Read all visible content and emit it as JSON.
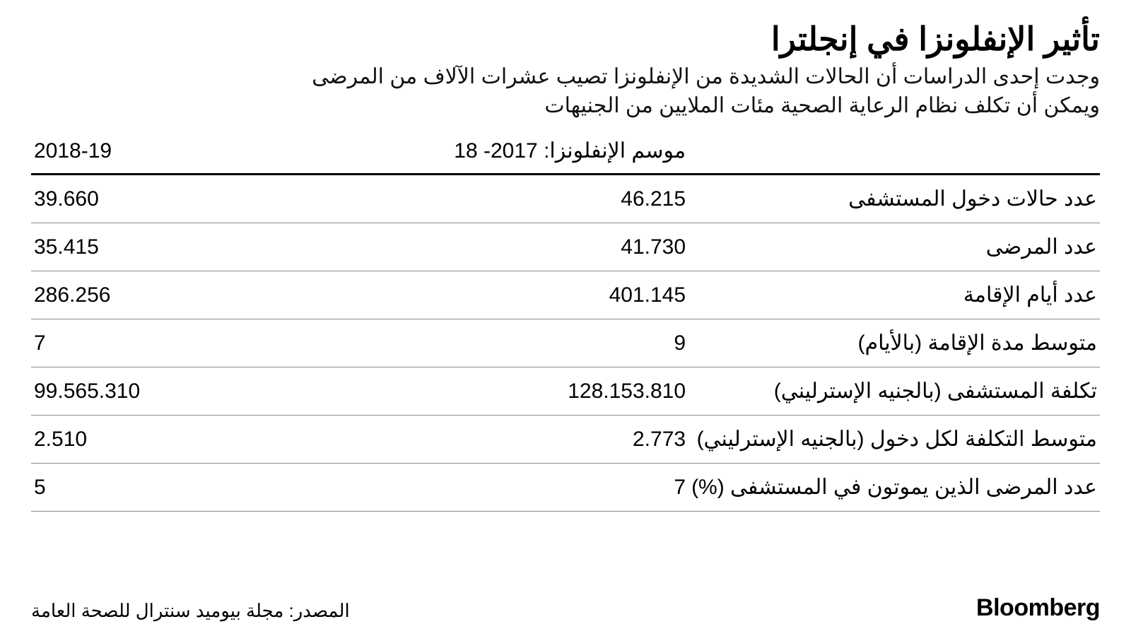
{
  "title": "تأثير الإنفلونزا في إنجلترا",
  "subtitle_line1": "وجدت إحدى الدراسات أن الحالات الشديدة من الإنفلونزا تصيب عشرات الآلاف من المرضى",
  "subtitle_line2": "ويمكن أن تكلف نظام الرعاية الصحية مئات الملايين من الجنيهات",
  "table": {
    "type": "table",
    "header_season_prefix": "موسم الإنفلونزا: ",
    "columns": {
      "label": "",
      "season1": "2017- 18",
      "season2": "2018-19"
    },
    "rows": [
      {
        "label": "عدد حالات دخول المستشفى",
        "s1": "46.215",
        "s2": "39.660"
      },
      {
        "label": "عدد المرضى",
        "s1": "41.730",
        "s2": "35.415"
      },
      {
        "label": "عدد أيام الإقامة",
        "s1": "401.145",
        "s2": "286.256"
      },
      {
        "label": "متوسط مدة الإقامة (بالأيام)",
        "s1": "9",
        "s2": "7"
      },
      {
        "label": "تكلفة المستشفى (بالجنيه الإسترليني)",
        "s1": "128.153.810",
        "s2": "99.565.310"
      },
      {
        "label": "متوسط التكلفة لكل دخول (بالجنيه الإسترليني)",
        "s1": "2.773",
        "s2": "2.510"
      },
      {
        "label": "عدد المرضى الذين يموتون في المستشفى (%)",
        "s1": "7",
        "s2": "5"
      }
    ],
    "border_header_color": "#000000",
    "border_row_color": "#888888",
    "text_color": "#000000",
    "background_color": "#ffffff",
    "label_fontsize": 30,
    "value_fontsize": 30,
    "header_fontsize": 30
  },
  "source": "المصدر: مجلة بيوميد سنترال للصحة العامة",
  "brand": "Bloomberg",
  "colors": {
    "background": "#ffffff",
    "text": "#000000",
    "row_border": "#888888",
    "header_border": "#000000"
  },
  "typography": {
    "title_fontsize": 46,
    "title_weight": 800,
    "subtitle_fontsize": 30,
    "brand_fontsize": 34,
    "brand_weight": 800,
    "source_fontsize": 26
  }
}
